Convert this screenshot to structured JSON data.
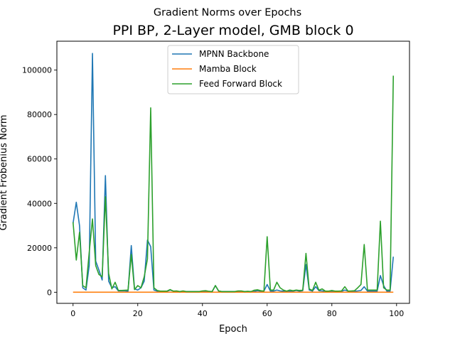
{
  "chart_data": {
    "type": "line",
    "suptitle": "Gradient Norms over Epochs",
    "title": "PPI BP, 2-Layer model, GMB block 0",
    "xlabel": "Epoch",
    "ylabel": "Gradient Frobenius Norm",
    "xlim": [
      -5,
      104
    ],
    "ylim": [
      -5000,
      113000
    ],
    "xticks": [
      0,
      20,
      40,
      60,
      80,
      100
    ],
    "yticks": [
      0,
      20000,
      40000,
      60000,
      80000,
      100000
    ],
    "grid": false,
    "legend_position": "upper center",
    "x": [
      0,
      1,
      2,
      3,
      4,
      5,
      6,
      7,
      8,
      9,
      10,
      11,
      12,
      13,
      14,
      15,
      16,
      17,
      18,
      19,
      20,
      21,
      22,
      23,
      24,
      25,
      26,
      27,
      28,
      29,
      30,
      31,
      32,
      33,
      34,
      35,
      36,
      37,
      38,
      39,
      40,
      41,
      42,
      43,
      44,
      45,
      46,
      47,
      48,
      49,
      50,
      51,
      52,
      53,
      54,
      55,
      56,
      57,
      58,
      59,
      60,
      61,
      62,
      63,
      64,
      65,
      66,
      67,
      68,
      69,
      70,
      71,
      72,
      73,
      74,
      75,
      76,
      77,
      78,
      79,
      80,
      81,
      82,
      83,
      84,
      85,
      86,
      87,
      88,
      89,
      90,
      91,
      92,
      93,
      94,
      95,
      96,
      97,
      98,
      99
    ],
    "series": [
      {
        "name": "MPNN Backbone",
        "color": "#1f77b4",
        "values": [
          31000,
          40500,
          30000,
          2000,
          1000,
          12000,
          107500,
          14000,
          10000,
          5500,
          52500,
          5000,
          2000,
          2500,
          600,
          600,
          600,
          500,
          21000,
          1500,
          1000,
          2000,
          5000,
          23500,
          20500,
          1000,
          500,
          300,
          300,
          400,
          1000,
          500,
          300,
          300,
          400,
          300,
          300,
          300,
          300,
          300,
          400,
          500,
          300,
          300,
          3000,
          500,
          300,
          300,
          300,
          300,
          300,
          300,
          300,
          300,
          300,
          300,
          400,
          700,
          500,
          500,
          3500,
          500,
          500,
          1000,
          600,
          500,
          500,
          500,
          500,
          800,
          500,
          700,
          12500,
          1000,
          500,
          2500,
          700,
          600,
          400,
          400,
          400,
          400,
          400,
          400,
          1000,
          500,
          400,
          500,
          600,
          800,
          2500,
          500,
          500,
          500,
          500,
          7500,
          3000,
          500,
          500,
          16000
        ]
      },
      {
        "name": "Mamba Block",
        "color": "#ff7f0e",
        "values": [
          10,
          10,
          10,
          10,
          10,
          10,
          10,
          10,
          10,
          10,
          10,
          10,
          10,
          10,
          10,
          10,
          10,
          10,
          10,
          10,
          10,
          10,
          10,
          10,
          10,
          10,
          10,
          10,
          10,
          10,
          10,
          10,
          10,
          10,
          10,
          10,
          10,
          10,
          10,
          10,
          10,
          10,
          10,
          10,
          10,
          10,
          10,
          10,
          10,
          10,
          10,
          10,
          10,
          10,
          10,
          10,
          10,
          10,
          10,
          10,
          10,
          10,
          10,
          10,
          10,
          10,
          10,
          10,
          10,
          10,
          10,
          10,
          10,
          10,
          10,
          10,
          10,
          10,
          10,
          10,
          10,
          10,
          10,
          10,
          10,
          10,
          10,
          10,
          10,
          10,
          10,
          10,
          10,
          10,
          10,
          10,
          10,
          10,
          10,
          10
        ]
      },
      {
        "name": "Feed Forward Block",
        "color": "#2ca02c",
        "values": [
          31500,
          14500,
          27000,
          3000,
          2000,
          18000,
          33000,
          12000,
          8000,
          7000,
          43000,
          8500,
          1500,
          4500,
          800,
          800,
          900,
          1000,
          17000,
          1200,
          3000,
          2000,
          7000,
          15000,
          83000,
          2000,
          800,
          500,
          500,
          500,
          1200,
          500,
          600,
          300,
          600,
          300,
          300,
          300,
          300,
          300,
          600,
          700,
          400,
          300,
          3000,
          600,
          300,
          300,
          300,
          300,
          300,
          600,
          600,
          300,
          400,
          300,
          900,
          1100,
          700,
          500,
          25000,
          1000,
          1000,
          4500,
          2000,
          1000,
          500,
          1000,
          700,
          1000,
          800,
          900,
          17500,
          1500,
          800,
          4500,
          900,
          1500,
          500,
          500,
          800,
          500,
          500,
          600,
          2500,
          500,
          600,
          700,
          2000,
          3500,
          21500,
          1000,
          1000,
          1000,
          1000,
          32000,
          2000,
          1000,
          1000,
          97500
        ]
      }
    ]
  }
}
